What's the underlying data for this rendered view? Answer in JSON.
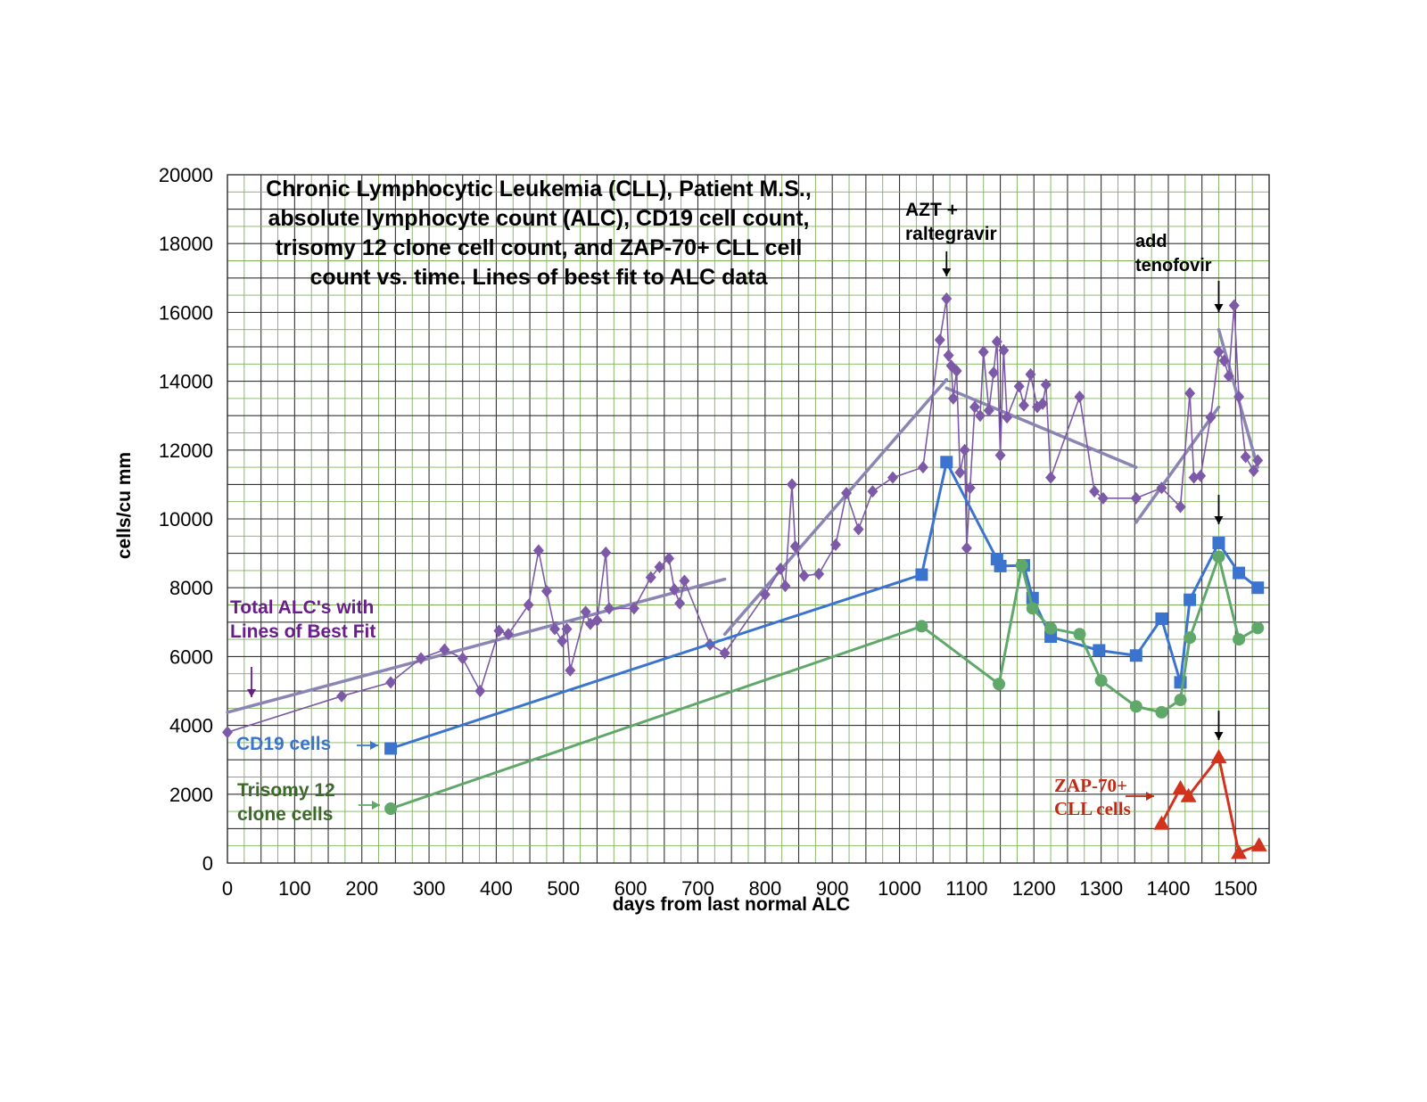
{
  "chart_data": {
    "type": "line",
    "title_lines": [
      "Chronic Lymphocytic Leukemia (CLL), Patient M.S.,",
      "absolute lymphocyte count (ALC), CD19 cell count,",
      "trisomy 12 clone cell count, and ZAP-70+ CLL cell",
      "count vs. time. Lines of best fit to ALC data"
    ],
    "xlabel": "days from last normal ALC",
    "ylabel": "cells/cu mm",
    "xlim": [
      0,
      1550
    ],
    "ylim": [
      0,
      20000
    ],
    "x_ticks": [
      0,
      100,
      200,
      300,
      400,
      500,
      600,
      700,
      800,
      900,
      1000,
      1100,
      1200,
      1300,
      1400,
      1500
    ],
    "y_ticks": [
      0,
      2000,
      4000,
      6000,
      8000,
      10000,
      12000,
      14000,
      16000,
      18000,
      20000
    ],
    "grid": true,
    "series": [
      {
        "name": "Total ALC's with Lines of Best Fit",
        "color": "#7d5aa8",
        "marker": "diamond",
        "points": [
          [
            0,
            3800
          ],
          [
            170,
            4850
          ],
          [
            243,
            5250
          ],
          [
            288,
            5950
          ],
          [
            323,
            6200
          ],
          [
            350,
            5950
          ],
          [
            376,
            5000
          ],
          [
            404,
            6750
          ],
          [
            418,
            6650
          ],
          [
            448,
            7500
          ],
          [
            463,
            9080
          ],
          [
            475,
            7900
          ],
          [
            487,
            6800
          ],
          [
            498,
            6450
          ],
          [
            505,
            6800
          ],
          [
            510,
            5600
          ],
          [
            533,
            7300
          ],
          [
            540,
            6950
          ],
          [
            550,
            7050
          ],
          [
            563,
            9020
          ],
          [
            568,
            7400
          ],
          [
            605,
            7400
          ],
          [
            630,
            8300
          ],
          [
            643,
            8600
          ],
          [
            657,
            8850
          ],
          [
            665,
            7950
          ],
          [
            673,
            7550
          ],
          [
            680,
            8200
          ],
          [
            718,
            6350
          ],
          [
            740,
            6100
          ],
          [
            800,
            7800
          ],
          [
            823,
            8550
          ],
          [
            830,
            8050
          ],
          [
            840,
            11000
          ],
          [
            845,
            9200
          ],
          [
            858,
            8350
          ],
          [
            880,
            8400
          ],
          [
            905,
            9250
          ],
          [
            921,
            10750
          ],
          [
            939,
            9700
          ],
          [
            960,
            10800
          ],
          [
            990,
            11200
          ],
          [
            1035,
            11500
          ],
          [
            1060,
            15200
          ],
          [
            1070,
            16400
          ],
          [
            1073,
            14750
          ],
          [
            1077,
            14450
          ],
          [
            1080,
            13500
          ],
          [
            1085,
            14300
          ],
          [
            1090,
            11350
          ],
          [
            1097,
            12000
          ],
          [
            1100,
            9150
          ],
          [
            1105,
            10900
          ],
          [
            1112,
            13250
          ],
          [
            1120,
            13000
          ],
          [
            1125,
            14850
          ],
          [
            1133,
            13150
          ],
          [
            1140,
            14250
          ],
          [
            1145,
            15150
          ],
          [
            1150,
            11850
          ],
          [
            1155,
            14900
          ],
          [
            1160,
            12950
          ],
          [
            1178,
            13850
          ],
          [
            1185,
            13300
          ],
          [
            1195,
            14200
          ],
          [
            1205,
            13250
          ],
          [
            1213,
            13350
          ],
          [
            1218,
            13900
          ],
          [
            1225,
            11200
          ],
          [
            1268,
            13550
          ],
          [
            1290,
            10800
          ],
          [
            1303,
            10600
          ],
          [
            1352,
            10600
          ],
          [
            1390,
            10900
          ],
          [
            1418,
            10350
          ],
          [
            1432,
            13650
          ],
          [
            1438,
            11200
          ],
          [
            1448,
            11250
          ],
          [
            1463,
            12950
          ],
          [
            1475,
            14850
          ],
          [
            1483,
            14600
          ],
          [
            1490,
            14150
          ],
          [
            1498,
            16200
          ],
          [
            1505,
            13550
          ],
          [
            1515,
            11800
          ],
          [
            1527,
            11400
          ],
          [
            1533,
            11700
          ]
        ]
      },
      {
        "name": "CD19 cells",
        "color": "#3b74cf",
        "marker": "square",
        "points": [
          [
            243,
            3330
          ],
          [
            1033,
            8380
          ],
          [
            1070,
            11650
          ],
          [
            1145,
            8830
          ],
          [
            1150,
            8630
          ],
          [
            1185,
            8650
          ],
          [
            1198,
            7700
          ],
          [
            1225,
            6580
          ],
          [
            1297,
            6180
          ],
          [
            1352,
            6030
          ],
          [
            1390,
            7100
          ],
          [
            1418,
            5250
          ],
          [
            1432,
            7650
          ],
          [
            1475,
            9300
          ],
          [
            1505,
            8430
          ],
          [
            1533,
            8000
          ]
        ]
      },
      {
        "name": "Trisomy 12 clone cells",
        "color": "#5fa86a",
        "marker": "circle",
        "points": [
          [
            243,
            1580
          ],
          [
            1033,
            6880
          ],
          [
            1148,
            5200
          ],
          [
            1182,
            8650
          ],
          [
            1198,
            7400
          ],
          [
            1225,
            6820
          ],
          [
            1268,
            6650
          ],
          [
            1300,
            5300
          ],
          [
            1352,
            4550
          ],
          [
            1390,
            4380
          ],
          [
            1418,
            4740
          ],
          [
            1432,
            6550
          ],
          [
            1475,
            8900
          ],
          [
            1505,
            6500
          ],
          [
            1533,
            6830
          ]
        ]
      },
      {
        "name": "ZAP-70+ CLL cells",
        "color": "#d3321c",
        "marker": "triangle",
        "points": [
          [
            1390,
            1150
          ],
          [
            1418,
            2180
          ],
          [
            1430,
            1950
          ],
          [
            1475,
            3080
          ],
          [
            1505,
            300
          ],
          [
            1535,
            520
          ]
        ]
      }
    ],
    "fit_lines": [
      {
        "name": "ALC fit 1",
        "from": [
          0,
          4380
        ],
        "to": [
          740,
          8250
        ]
      },
      {
        "name": "ALC fit 2",
        "from": [
          740,
          6650
        ],
        "to": [
          1070,
          14050
        ]
      },
      {
        "name": "ALC fit 3",
        "from": [
          1070,
          13800
        ],
        "to": [
          1352,
          11500
        ]
      },
      {
        "name": "ALC fit 4",
        "from": [
          1352,
          9900
        ],
        "to": [
          1475,
          13250
        ]
      },
      {
        "name": "ALC fit 5",
        "from": [
          1475,
          15500
        ],
        "to": [
          1533,
          11500
        ]
      }
    ],
    "annotations": [
      {
        "key": "azt",
        "lines": [
          "AZT +",
          "raltegravir"
        ]
      },
      {
        "key": "tenofovir",
        "lines": [
          "add",
          "tenofovir"
        ]
      },
      {
        "key": "alc_label",
        "lines": [
          "Total ALC's with",
          "Lines of Best Fit"
        ]
      },
      {
        "key": "cd19_label",
        "lines": [
          "CD19 cells"
        ]
      },
      {
        "key": "tri12_label",
        "lines": [
          "Trisomy 12",
          "clone cells"
        ]
      },
      {
        "key": "zap70_label",
        "lines": [
          "ZAP-70+",
          "CLL cells"
        ]
      }
    ]
  },
  "colors": {
    "grid_major": "#333333",
    "grid_minor": "#7fb05a",
    "alc_fit": "#8a85b3",
    "alc_label": "#6a1e8c",
    "tri12_label": "#3c6a2a",
    "zap_label": "#c02a14",
    "arrow": "#000000"
  }
}
